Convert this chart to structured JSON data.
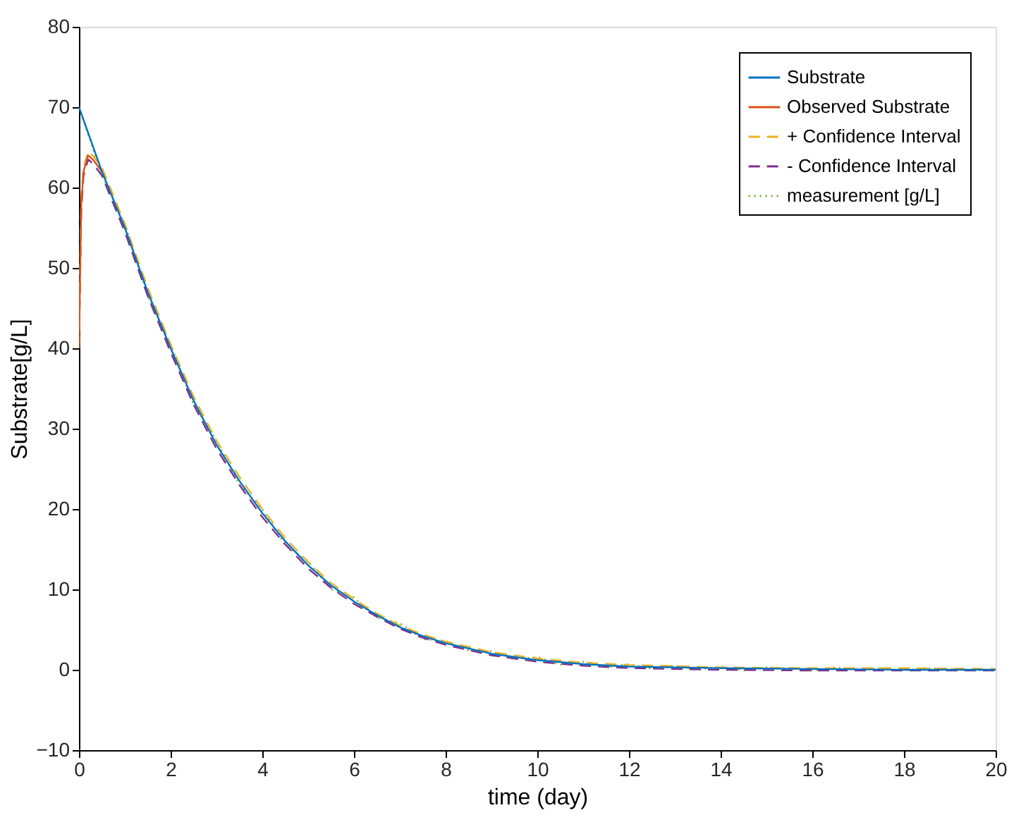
{
  "chart_data": {
    "type": "line",
    "xlabel": "time (day)",
    "ylabel": "Substrate[g/L]",
    "xlim": [
      0,
      20
    ],
    "ylim": [
      -10,
      80
    ],
    "xticks": [
      0,
      2,
      4,
      6,
      8,
      10,
      12,
      14,
      16,
      18,
      20
    ],
    "yticks": [
      -10,
      0,
      10,
      20,
      30,
      40,
      50,
      60,
      70,
      80
    ],
    "grid": false,
    "legend": "top right",
    "marker": "none",
    "series": [
      {
        "name": "Substrate",
        "color": "#0072bd",
        "line_style": "solid",
        "x": [
          0,
          0.5,
          1,
          1.5,
          2,
          2.5,
          3,
          3.5,
          4,
          4.5,
          5,
          5.5,
          6,
          6.5,
          7,
          7.5,
          8,
          9,
          10,
          11,
          12,
          14,
          16,
          18,
          20
        ],
        "values": [
          70,
          62,
          55,
          47,
          40,
          33.5,
          28,
          23.5,
          19.5,
          16,
          13,
          10.5,
          8.5,
          6.8,
          5.3,
          4.2,
          3.3,
          2,
          1.2,
          0.7,
          0.4,
          0.2,
          0.1,
          0,
          0
        ]
      },
      {
        "name": "Observed Substrate",
        "color": "#d95319",
        "line_style": "solid",
        "x": [
          0,
          0.05,
          0.1,
          0.2,
          0.3,
          0.5
        ],
        "values": [
          40,
          58,
          62,
          64,
          63.5,
          62
        ]
      },
      {
        "name": "+ Confidence Interval",
        "color": "#edb120",
        "line_style": "dashed",
        "x": [
          0,
          0.05,
          0.1,
          0.2,
          0.3,
          0.5,
          1,
          1.5,
          2,
          2.5,
          3,
          3.5,
          4,
          4.5,
          5,
          5.5,
          6,
          6.5,
          7,
          7.5,
          8,
          9,
          10,
          11,
          12,
          14,
          16,
          18,
          20
        ],
        "values": [
          40,
          59,
          62.5,
          64.5,
          64,
          62.5,
          55.5,
          47.5,
          40.5,
          34,
          28.5,
          24,
          20,
          16.4,
          13.4,
          10.8,
          8.8,
          7,
          5.5,
          4.4,
          3.5,
          2.2,
          1.4,
          0.9,
          0.6,
          0.3,
          0.2,
          0.2,
          0.1
        ]
      },
      {
        "name": "- Confidence Interval",
        "color": "#7e2f8e",
        "line_style": "dashed",
        "x": [
          0,
          0.05,
          0.1,
          0.2,
          0.3,
          0.5,
          1,
          1.5,
          2,
          2.5,
          3,
          3.5,
          4,
          4.5,
          5,
          5.5,
          6,
          6.5,
          7,
          7.5,
          8,
          9,
          10,
          11,
          12,
          14,
          16,
          18,
          20
        ],
        "values": [
          40,
          57,
          61.5,
          63.5,
          63,
          61.5,
          54.5,
          46.5,
          39.5,
          33,
          27.5,
          23,
          19,
          15.6,
          12.6,
          10.2,
          8.2,
          6.6,
          5.1,
          4,
          3.1,
          1.8,
          1,
          0.5,
          0.2,
          0,
          -0.1,
          -0.1,
          -0.1
        ]
      },
      {
        "name": "measurement [g/L]",
        "color": "#77ac30",
        "line_style": "dotted",
        "x": [
          0,
          0.5,
          1,
          1.5,
          2,
          2.5,
          3,
          3.5,
          4,
          4.5,
          5,
          5.5,
          6,
          6.5,
          7,
          7.5,
          8,
          8.5,
          9,
          9.5,
          10,
          10.5,
          11,
          11.5,
          12,
          12.5,
          13,
          13.5,
          14,
          14.5,
          15,
          15.5,
          16,
          16.5,
          17,
          17.5,
          18,
          18.5,
          19,
          19.5,
          20
        ],
        "values": [
          70,
          61.5,
          55.5,
          46.5,
          40.5,
          33,
          28.5,
          23,
          20,
          15.5,
          13.5,
          10,
          9,
          6.5,
          5.8,
          3.8,
          3.6,
          2.4,
          2.3,
          1.3,
          1.6,
          0.6,
          1,
          0.3,
          0.7,
          0.1,
          0.5,
          0,
          0.4,
          -0.1,
          0.3,
          0.2,
          -0.1,
          0.3,
          0,
          0.2,
          -0.1,
          0.2,
          0.1,
          -0.1,
          0.1
        ]
      }
    ]
  }
}
